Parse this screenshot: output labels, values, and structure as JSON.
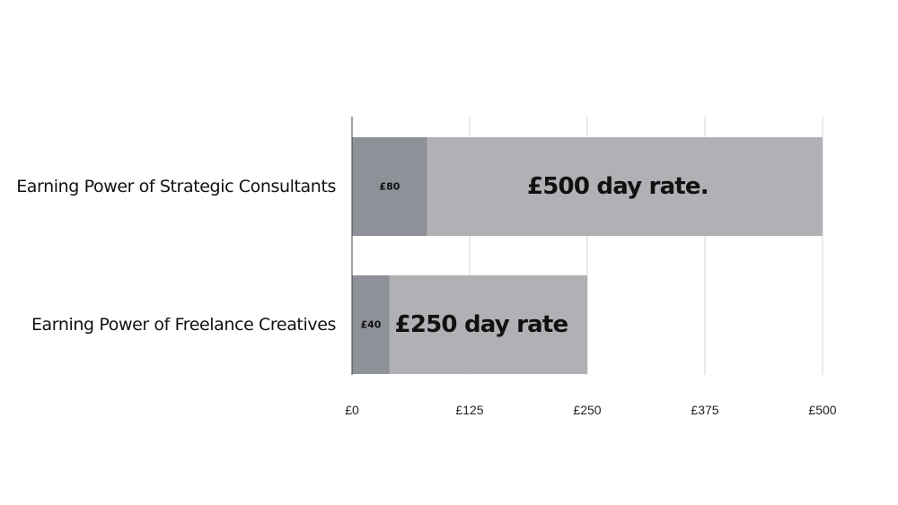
{
  "chart_data": {
    "type": "bar",
    "orientation": "horizontal",
    "stacked": true,
    "categories": [
      "Earning Power of Strategic Consultants",
      "Earning Power of Freelance Creatives"
    ],
    "series": [
      {
        "values": [
          80,
          40
        ],
        "labels": [
          "£80",
          "£40"
        ],
        "color": "#8e9197"
      },
      {
        "values": [
          420,
          210
        ],
        "labels": [
          "£500 day rate.",
          "£250 day rate"
        ],
        "color": "#b0b1b4"
      }
    ],
    "xlim": [
      0,
      500
    ],
    "xticks": [
      0,
      125,
      250,
      375,
      500
    ],
    "xtick_labels": [
      "£0",
      "£125",
      "£250",
      "£375",
      "£500"
    ],
    "grid": true,
    "legend": "none",
    "title": "",
    "xlabel": "",
    "ylabel": ""
  }
}
